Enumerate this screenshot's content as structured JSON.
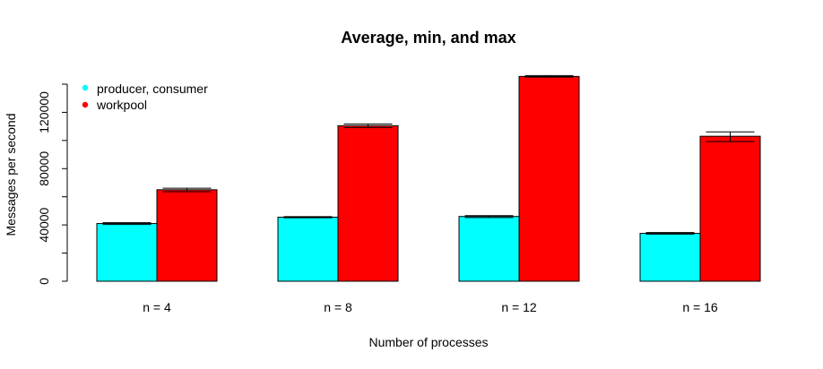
{
  "chart_data": {
    "type": "bar",
    "title": "Average, min, and max",
    "xlabel": "Number of processes",
    "ylabel": "Messages per second",
    "categories": [
      "n = 4",
      "n = 8",
      "n = 12",
      "n = 16"
    ],
    "series": [
      {
        "name": "producer, consumer",
        "color": "#00ffff",
        "values": [
          41000,
          45500,
          46000,
          34000
        ],
        "min": [
          40300,
          45100,
          45300,
          33500
        ],
        "max": [
          41600,
          45900,
          46600,
          34600
        ]
      },
      {
        "name": "workpool",
        "color": "#ff0000",
        "values": [
          65000,
          110500,
          145500,
          103000
        ],
        "min": [
          63600,
          109200,
          145000,
          99300
        ],
        "max": [
          66100,
          111700,
          146100,
          106100
        ]
      }
    ],
    "yticks": [
      0,
      40000,
      80000,
      120000
    ],
    "ylim": [
      0,
      140000
    ],
    "grid": false,
    "legend_position": "top-left"
  }
}
